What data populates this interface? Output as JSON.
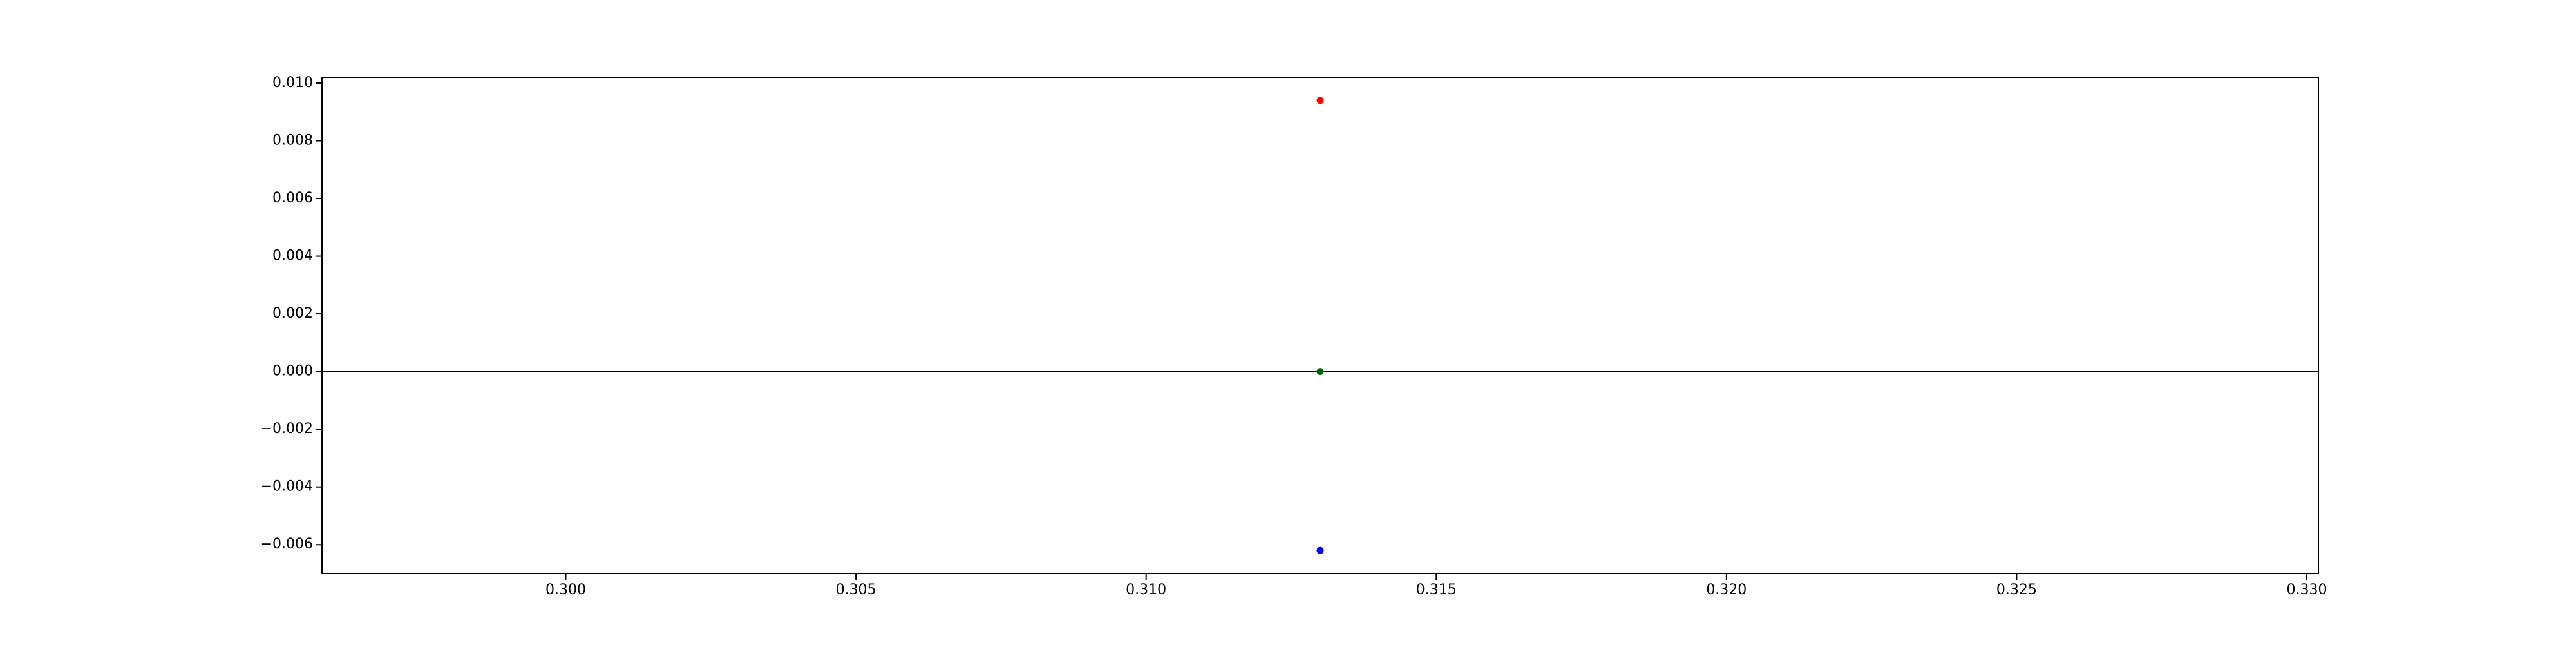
{
  "chart_data": {
    "type": "scatter",
    "title": "",
    "xlabel": "",
    "ylabel": "",
    "xlim": [
      0.2958,
      0.3302
    ],
    "ylim": [
      -0.007,
      0.0102
    ],
    "x_ticks": [
      0.3,
      0.305,
      0.31,
      0.315,
      0.32,
      0.325,
      0.33
    ],
    "x_tick_labels": [
      "0.300",
      "0.305",
      "0.310",
      "0.315",
      "0.320",
      "0.325",
      "0.330"
    ],
    "y_ticks": [
      0.01,
      0.008,
      0.006,
      0.004,
      0.002,
      0.0,
      -0.002,
      -0.004,
      -0.006
    ],
    "y_tick_labels": [
      "0.010",
      "0.008",
      "0.006",
      "0.004",
      "0.002",
      "0.000",
      "−0.002",
      "−0.004",
      "−0.006"
    ],
    "grid": false,
    "reference_line": {
      "y": 0.0,
      "color": "#000000"
    },
    "points": [
      {
        "x": 0.313,
        "y": 0.0094,
        "color": "#ff0000"
      },
      {
        "x": 0.313,
        "y": 0.0,
        "color": "#006400"
      },
      {
        "x": 0.313,
        "y": -0.0062,
        "color": "#0000ff"
      }
    ]
  }
}
